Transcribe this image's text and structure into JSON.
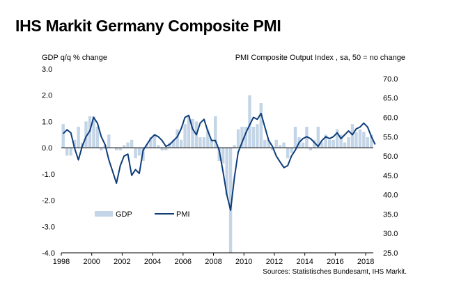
{
  "chart_data": {
    "type": "bar+line",
    "title": "IHS Markit Germany Composite PMI",
    "left_axis_label": "GDP q/q % change",
    "right_axis_label": "PMI Composite  Output  Index  , sa, 50 = no change",
    "source": "Sources: Statistisches Bundesamt, IHS Markit.",
    "left_ylim": [
      -4.0,
      3.0
    ],
    "left_ticks": [
      "3.0",
      "2.0",
      "1.0",
      "0.0",
      "-1.0",
      "-2.0",
      "-3.0",
      "-4.0"
    ],
    "right_ylim": [
      25.0,
      72.5
    ],
    "right_ticks": [
      "70.0",
      "65.0",
      "60.0",
      "55.0",
      "50.0",
      "45.0",
      "40.0",
      "35.0",
      "30.0",
      "25.0"
    ],
    "x_range": [
      1998,
      2018.5
    ],
    "x_ticks": [
      "1998",
      "2000",
      "2002",
      "2004",
      "2006",
      "2008",
      "2010",
      "2012",
      "2014",
      "2016",
      "2018"
    ],
    "legend": [
      "GDP",
      "PMI"
    ],
    "colors": {
      "gdp_bar": "#c3d5e6",
      "pmi_line": "#0e3d7a"
    },
    "series": [
      {
        "name": "GDP",
        "unit": "q/q % change",
        "x": [
          1998.0,
          1998.25,
          1998.5,
          1998.75,
          1999.0,
          1999.25,
          1999.5,
          1999.75,
          2000.0,
          2000.25,
          2000.5,
          2000.75,
          2001.0,
          2001.25,
          2001.5,
          2001.75,
          2002.0,
          2002.25,
          2002.5,
          2002.75,
          2003.0,
          2003.25,
          2003.5,
          2003.75,
          2004.0,
          2004.25,
          2004.5,
          2004.75,
          2005.0,
          2005.25,
          2005.5,
          2005.75,
          2006.0,
          2006.25,
          2006.5,
          2006.75,
          2007.0,
          2007.25,
          2007.5,
          2007.75,
          2008.0,
          2008.25,
          2008.5,
          2008.75,
          2009.0,
          2009.25,
          2009.5,
          2009.75,
          2010.0,
          2010.25,
          2010.5,
          2010.75,
          2011.0,
          2011.25,
          2011.5,
          2011.75,
          2012.0,
          2012.25,
          2012.5,
          2012.75,
          2013.0,
          2013.25,
          2013.5,
          2013.75,
          2014.0,
          2014.25,
          2014.5,
          2014.75,
          2015.0,
          2015.25,
          2015.5,
          2015.75,
          2016.0,
          2016.25,
          2016.5,
          2016.75,
          2017.0,
          2017.25,
          2017.5,
          2017.75,
          2018.0,
          2018.25
        ],
        "values": [
          0.9,
          -0.3,
          -0.3,
          0.3,
          0.8,
          0.2,
          1.0,
          1.2,
          1.2,
          0.8,
          -0.1,
          0.1,
          0.5,
          0.0,
          -0.1,
          -0.1,
          0.1,
          0.2,
          0.3,
          -0.4,
          -0.3,
          -0.5,
          0.1,
          0.4,
          0.5,
          0.1,
          -0.1,
          -0.1,
          0.2,
          0.3,
          0.7,
          0.3,
          0.9,
          1.2,
          1.1,
          1.0,
          0.4,
          0.4,
          0.7,
          0.3,
          1.2,
          -0.5,
          -0.6,
          -1.8,
          -4.0,
          0.1,
          0.7,
          0.8,
          0.8,
          2.0,
          0.8,
          0.9,
          1.7,
          0.3,
          0.3,
          -0.1,
          0.3,
          0.1,
          0.2,
          -0.4,
          -0.2,
          0.8,
          0.4,
          0.2,
          0.8,
          -0.1,
          0.3,
          0.8,
          0.2,
          0.5,
          0.3,
          0.3,
          0.7,
          0.5,
          0.2,
          0.4,
          0.9,
          0.6,
          0.7,
          0.6,
          0.4,
          0.5
        ]
      },
      {
        "name": "PMI",
        "unit": "index",
        "x": [
          1998.0,
          1998.25,
          1998.5,
          1998.75,
          1999.0,
          1999.25,
          1999.5,
          1999.75,
          2000.0,
          2000.25,
          2000.5,
          2000.75,
          2001.0,
          2001.25,
          2001.5,
          2001.75,
          2002.0,
          2002.25,
          2002.5,
          2002.75,
          2003.0,
          2003.25,
          2003.5,
          2003.75,
          2004.0,
          2004.25,
          2004.5,
          2004.75,
          2005.0,
          2005.25,
          2005.5,
          2005.75,
          2006.0,
          2006.25,
          2006.5,
          2006.75,
          2007.0,
          2007.25,
          2007.5,
          2007.75,
          2008.0,
          2008.25,
          2008.5,
          2008.75,
          2009.0,
          2009.25,
          2009.5,
          2009.75,
          2010.0,
          2010.25,
          2010.5,
          2010.75,
          2011.0,
          2011.25,
          2011.5,
          2011.75,
          2012.0,
          2012.25,
          2012.5,
          2012.75,
          2013.0,
          2013.25,
          2013.5,
          2013.75,
          2014.0,
          2014.25,
          2014.5,
          2014.75,
          2015.0,
          2015.25,
          2015.5,
          2015.75,
          2016.0,
          2016.25,
          2016.5,
          2016.75,
          2017.0,
          2017.25,
          2017.5,
          2017.75,
          2018.0,
          2018.25,
          2018.5
        ],
        "values": [
          55.8,
          56.8,
          56.0,
          52.0,
          49.0,
          52.5,
          55.0,
          56.5,
          60.0,
          58.5,
          55.0,
          53.0,
          49.0,
          46.0,
          43.0,
          47.5,
          50.0,
          50.5,
          45.0,
          46.5,
          45.5,
          51.5,
          53.0,
          54.5,
          55.5,
          55.0,
          54.0,
          52.5,
          53.0,
          54.0,
          55.0,
          57.0,
          60.0,
          60.5,
          57.0,
          55.5,
          58.5,
          59.5,
          56.5,
          54.0,
          54.0,
          51.5,
          46.0,
          40.0,
          36.0,
          44.5,
          51.0,
          53.5,
          56.0,
          58.0,
          60.0,
          59.5,
          61.0,
          57.5,
          54.0,
          52.5,
          50.0,
          48.5,
          47.0,
          47.5,
          50.0,
          51.5,
          53.5,
          54.5,
          55.0,
          54.5,
          53.5,
          52.5,
          54.0,
          55.0,
          54.5,
          55.0,
          56.0,
          54.5,
          55.5,
          56.5,
          55.5,
          57.0,
          57.5,
          58.5,
          57.5,
          55.0,
          53.0
        ]
      }
    ]
  }
}
